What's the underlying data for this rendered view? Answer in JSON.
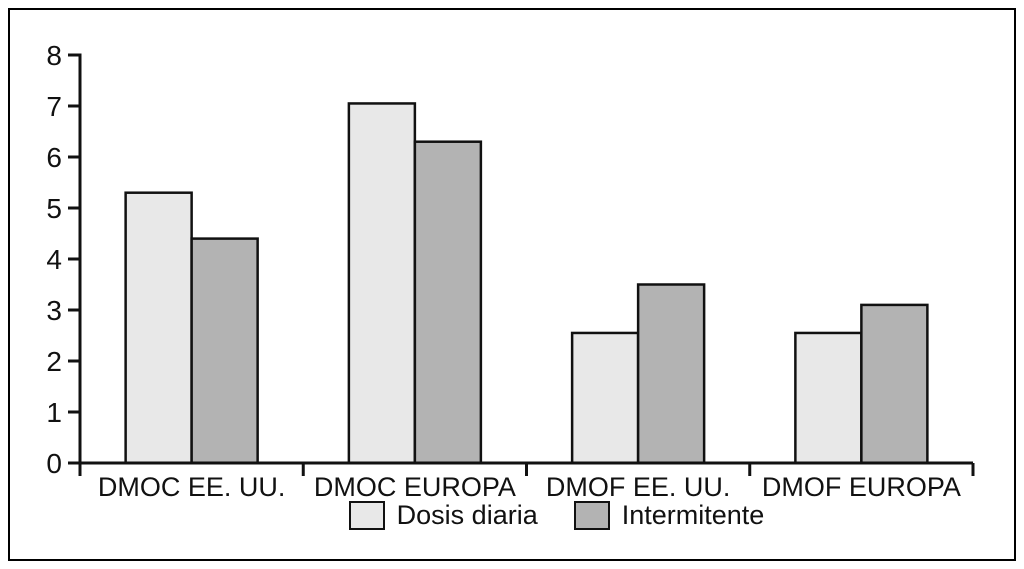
{
  "figure": {
    "background": "#ffffff",
    "frame_border_color": "#000000",
    "axis_color": "#111111",
    "text_color": "#111111"
  },
  "chart_data": {
    "type": "bar",
    "title": "",
    "xlabel": "",
    "ylabel": "",
    "categories": [
      "DMOC EE. UU.",
      "DMOC EUROPA",
      "DMOF EE. UU.",
      "DMOF EUROPA"
    ],
    "series": [
      {
        "name": "Dosis diaria",
        "color": "#e8e8e8",
        "values": [
          5.3,
          7.05,
          2.55,
          2.55
        ]
      },
      {
        "name": "Intermitente",
        "color": "#b3b3b3",
        "values": [
          4.4,
          6.3,
          3.5,
          3.1
        ]
      }
    ],
    "ylim": [
      0,
      8
    ],
    "yticks": [
      0,
      1,
      2,
      3,
      4,
      5,
      6,
      7,
      8
    ],
    "grid": false,
    "legend_position": "bottom",
    "bar_outline_color": "#111111"
  }
}
